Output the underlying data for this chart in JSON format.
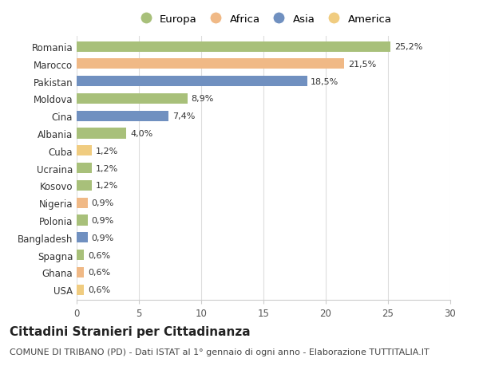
{
  "countries": [
    "Romania",
    "Marocco",
    "Pakistan",
    "Moldova",
    "Cina",
    "Albania",
    "Cuba",
    "Ucraina",
    "Kosovo",
    "Nigeria",
    "Polonia",
    "Bangladesh",
    "Spagna",
    "Ghana",
    "USA"
  ],
  "values": [
    25.2,
    21.5,
    18.5,
    8.9,
    7.4,
    4.0,
    1.2,
    1.2,
    1.2,
    0.9,
    0.9,
    0.9,
    0.6,
    0.6,
    0.6
  ],
  "labels": [
    "25,2%",
    "21,5%",
    "18,5%",
    "8,9%",
    "7,4%",
    "4,0%",
    "1,2%",
    "1,2%",
    "1,2%",
    "0,9%",
    "0,9%",
    "0,9%",
    "0,6%",
    "0,6%",
    "0,6%"
  ],
  "continents": [
    "Europa",
    "Africa",
    "Asia",
    "Europa",
    "Asia",
    "Europa",
    "America",
    "Europa",
    "Europa",
    "Africa",
    "Europa",
    "Asia",
    "Europa",
    "Africa",
    "America"
  ],
  "continent_colors": {
    "Europa": "#a8c07a",
    "Africa": "#f0b986",
    "Asia": "#7090c0",
    "America": "#f0cc80"
  },
  "legend_order": [
    "Europa",
    "Africa",
    "Asia",
    "America"
  ],
  "title": "Cittadini Stranieri per Cittadinanza",
  "subtitle": "COMUNE DI TRIBANO (PD) - Dati ISTAT al 1° gennaio di ogni anno - Elaborazione TUTTITALIA.IT",
  "xlim": [
    0,
    30
  ],
  "xticks": [
    0,
    5,
    10,
    15,
    20,
    25,
    30
  ],
  "bar_height": 0.6,
  "title_fontsize": 11,
  "subtitle_fontsize": 8,
  "label_fontsize": 8,
  "tick_fontsize": 8.5,
  "legend_fontsize": 9.5
}
